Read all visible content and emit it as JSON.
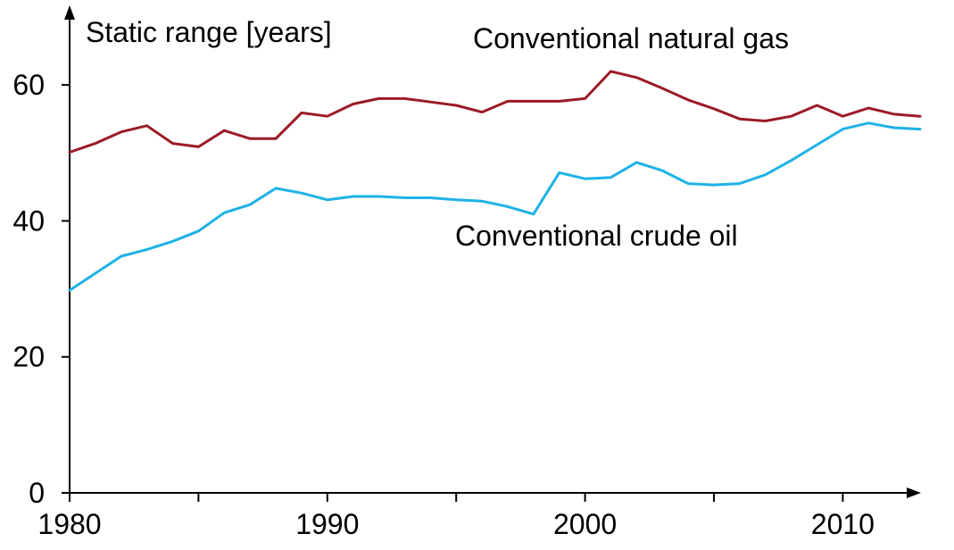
{
  "chart_data": {
    "type": "line",
    "title": "",
    "ylabel": "Static range [years]",
    "xlabel": "",
    "xlim": [
      1980,
      2013
    ],
    "ylim": [
      0,
      70
    ],
    "x_ticks_labeled": [
      1980,
      1990,
      2000,
      2010
    ],
    "x_ticks_minor": [
      1985,
      1995,
      2005
    ],
    "y_ticks": [
      0,
      20,
      40,
      60
    ],
    "grid": false,
    "legend": "inline labels",
    "series": [
      {
        "name": "Conventional natural gas",
        "color": "#9b1b26",
        "x": [
          1980,
          1981,
          1982,
          1983,
          1984,
          1985,
          1986,
          1987,
          1988,
          1989,
          1990,
          1991,
          1992,
          1993,
          1994,
          1995,
          1996,
          1997,
          1998,
          1999,
          2000,
          2001,
          2002,
          2003,
          2004,
          2005,
          2006,
          2007,
          2008,
          2009,
          2010,
          2011,
          2012,
          2013
        ],
        "values": [
          50.1,
          51.4,
          53.1,
          54.0,
          51.4,
          50.9,
          53.3,
          52.1,
          52.1,
          55.9,
          55.4,
          57.2,
          58.0,
          58.0,
          57.5,
          57.0,
          56.0,
          57.6,
          57.6,
          57.6,
          58.0,
          62.0,
          61.1,
          59.5,
          57.8,
          56.5,
          55.0,
          54.7,
          55.4,
          57.0,
          55.4,
          56.6,
          55.7,
          55.4
        ]
      },
      {
        "name": "Conventional crude oil",
        "color": "#1eb2e6",
        "x": [
          1980,
          1981,
          1982,
          1983,
          1984,
          1985,
          1986,
          1987,
          1988,
          1989,
          1990,
          1991,
          1992,
          1993,
          1994,
          1995,
          1996,
          1997,
          1998,
          1999,
          2000,
          2001,
          2002,
          2003,
          2004,
          2005,
          2006,
          2007,
          2008,
          2009,
          2010,
          2011,
          2012,
          2013
        ],
        "values": [
          29.8,
          32.3,
          34.8,
          35.8,
          37.0,
          38.5,
          41.2,
          42.4,
          44.8,
          44.1,
          43.1,
          43.6,
          43.6,
          43.4,
          43.4,
          43.1,
          42.9,
          42.1,
          41.0,
          47.1,
          46.2,
          46.4,
          48.6,
          47.4,
          45.5,
          45.3,
          45.5,
          46.8,
          48.9,
          51.2,
          53.5,
          54.4,
          53.7,
          53.5
        ]
      }
    ]
  }
}
